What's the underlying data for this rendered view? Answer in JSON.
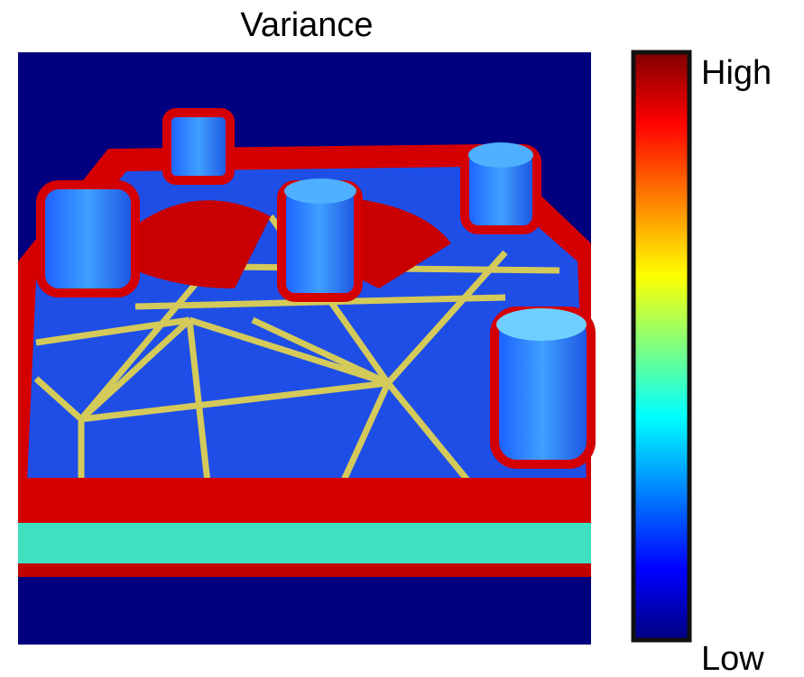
{
  "title": "Variance",
  "colorbar": {
    "high_label": "High",
    "low_label": "Low"
  }
}
